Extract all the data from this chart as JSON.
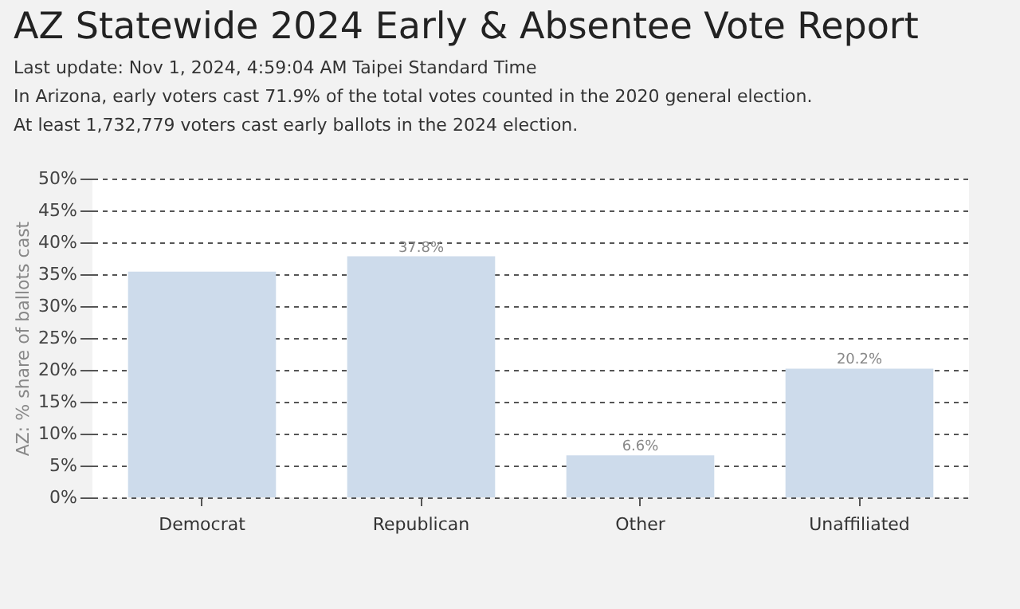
{
  "chart_data": {
    "type": "bar",
    "title": "AZ Statewide 2024 Early & Absentee Vote Report",
    "annotations": [
      "Last update: Nov 1, 2024, 4:59:04 AM Taipei Standard Time",
      "In Arizona, early voters cast 71.9% of the total votes counted in the 2020 general election.",
      "At least 1,732,779 voters cast early ballots in the 2024 election."
    ],
    "ylabel": "AZ: % share of ballots cast",
    "categories": [
      "Democrat",
      "Republican",
      "Other",
      "Unaffiliated"
    ],
    "values": [
      35.4,
      37.8,
      6.6,
      20.2
    ],
    "value_labels": [
      null,
      "37.8%",
      "6.6%",
      "20.2%"
    ],
    "color": "#cddbeb",
    "ylim": [
      0,
      50
    ],
    "yticks": [
      {
        "value": 0,
        "label": "0%"
      },
      {
        "value": 5,
        "label": "5%"
      },
      {
        "value": 10,
        "label": "10%"
      },
      {
        "value": 15,
        "label": "15%"
      },
      {
        "value": 20,
        "label": "20%"
      },
      {
        "value": 25,
        "label": "25%"
      },
      {
        "value": 30,
        "label": "30%"
      },
      {
        "value": 35,
        "label": "35%"
      },
      {
        "value": 40,
        "label": "40%"
      },
      {
        "value": 45,
        "label": "45%"
      },
      {
        "value": 50,
        "label": "50%"
      }
    ],
    "grid": "y"
  }
}
